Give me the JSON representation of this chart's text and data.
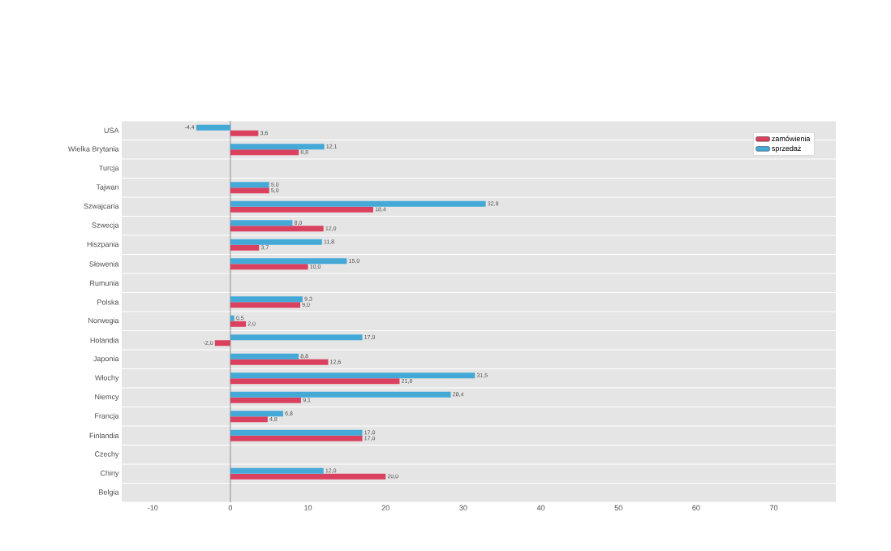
{
  "chart_data": {
    "type": "bar",
    "orientation": "horizontal",
    "categories": [
      "USA",
      "Wielka Brytania",
      "Turcja",
      "Tajwan",
      "Szwajcaria",
      "Szwecja",
      "Hiszpania",
      "Słowenia",
      "Rumunia",
      "Polska",
      "Norwegia",
      "Holandia",
      "Japonia",
      "Włochy",
      "Niemcy",
      "Francja",
      "Finlandia",
      "Czechy",
      "Chiny",
      "Belgia"
    ],
    "series": [
      {
        "name": "zamówienia",
        "color": "#d9415e",
        "values": [
          3.6,
          8.8,
          null,
          5.0,
          18.4,
          12.0,
          3.7,
          10.0,
          null,
          9.0,
          2.0,
          -2.0,
          12.6,
          21.8,
          9.1,
          4.8,
          17.0,
          null,
          20.0,
          null
        ],
        "value_labels": [
          "3,6",
          "8,8",
          null,
          "5,0",
          "18,4",
          "12,0",
          "3,7",
          "10,0",
          null,
          "9,0",
          "2,0",
          "-2,0",
          "12,6",
          "21,8",
          "9,1",
          "4,8",
          "17,0",
          null,
          "20,0",
          null
        ]
      },
      {
        "name": "sprzedaż",
        "color": "#45a9d8",
        "values": [
          -4.4,
          12.1,
          null,
          5.0,
          32.9,
          8.0,
          11.8,
          15.0,
          null,
          9.3,
          0.5,
          17.0,
          8.8,
          31.5,
          28.4,
          6.8,
          17.0,
          null,
          12.0,
          null
        ],
        "value_labels": [
          "-4,4",
          "12,1",
          null,
          "5,0",
          "32,9",
          "8,0",
          "11,8",
          "15,0",
          null,
          "9,3",
          "0,5",
          "17,0",
          "8,8",
          "31,5",
          "28,4",
          "6,8",
          "17,0",
          null,
          "12,0",
          null
        ]
      }
    ],
    "xlim": [
      -14,
      78
    ],
    "xticks": [
      -10,
      0,
      10,
      20,
      30,
      40,
      50,
      60,
      70
    ],
    "grid": "y",
    "legend": "top right"
  }
}
